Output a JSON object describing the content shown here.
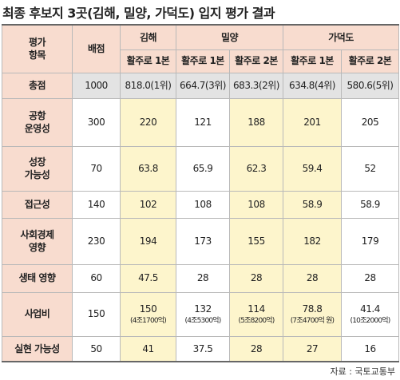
{
  "title": "최종 후보지 3곳(김해, 밀양, 가덕도) 입지 평가 결과",
  "table": {
    "header": {
      "item": "평가\n항목",
      "score": "배점",
      "sites": [
        {
          "name": "김해",
          "plans": [
            "활주로 1본"
          ]
        },
        {
          "name": "밀양",
          "plans": [
            "활주로 1본",
            "활주로 2본"
          ]
        },
        {
          "name": "가덕도",
          "plans": [
            "활주로 1본",
            "활주로 2본"
          ]
        }
      ]
    },
    "rows": [
      {
        "label": "총점",
        "score": "1000",
        "cells": [
          "818.0(1위)",
          "664.7(3위)",
          "683.3(2위)",
          "634.8(4위)",
          "580.6(5위)"
        ]
      },
      {
        "label": "공항\n운영성",
        "score": "300",
        "cells": [
          "220",
          "121",
          "188",
          "201",
          "205"
        ]
      },
      {
        "label": "성장\n가능성",
        "score": "70",
        "cells": [
          "63.8",
          "65.9",
          "62.3",
          "59.4",
          "52"
        ]
      },
      {
        "label": "접근성",
        "score": "140",
        "cells": [
          "102",
          "108",
          "108",
          "58.9",
          "58.9"
        ]
      },
      {
        "label": "사회경제\n영향",
        "score": "230",
        "cells": [
          "194",
          "173",
          "155",
          "182",
          "179"
        ]
      },
      {
        "label": "생태 영향",
        "score": "60",
        "cells": [
          "47.5",
          "28",
          "28",
          "28",
          "28"
        ]
      },
      {
        "label": "사업비",
        "score": "150",
        "cells": [
          {
            "value": "150",
            "note": "(4조1700억)"
          },
          {
            "value": "132",
            "note": "(4조5300억)"
          },
          {
            "value": "114",
            "note": "(5조8200억)"
          },
          {
            "value": "78.8",
            "note": "(7조4700억 원)"
          },
          {
            "value": "41.4",
            "note": "(10조2000억)"
          }
        ]
      },
      {
        "label": "실현 가능성",
        "score": "50",
        "cells": [
          "41",
          "37.5",
          "28",
          "27",
          "16"
        ]
      }
    ]
  },
  "source": "자료 : 국토교통부"
}
